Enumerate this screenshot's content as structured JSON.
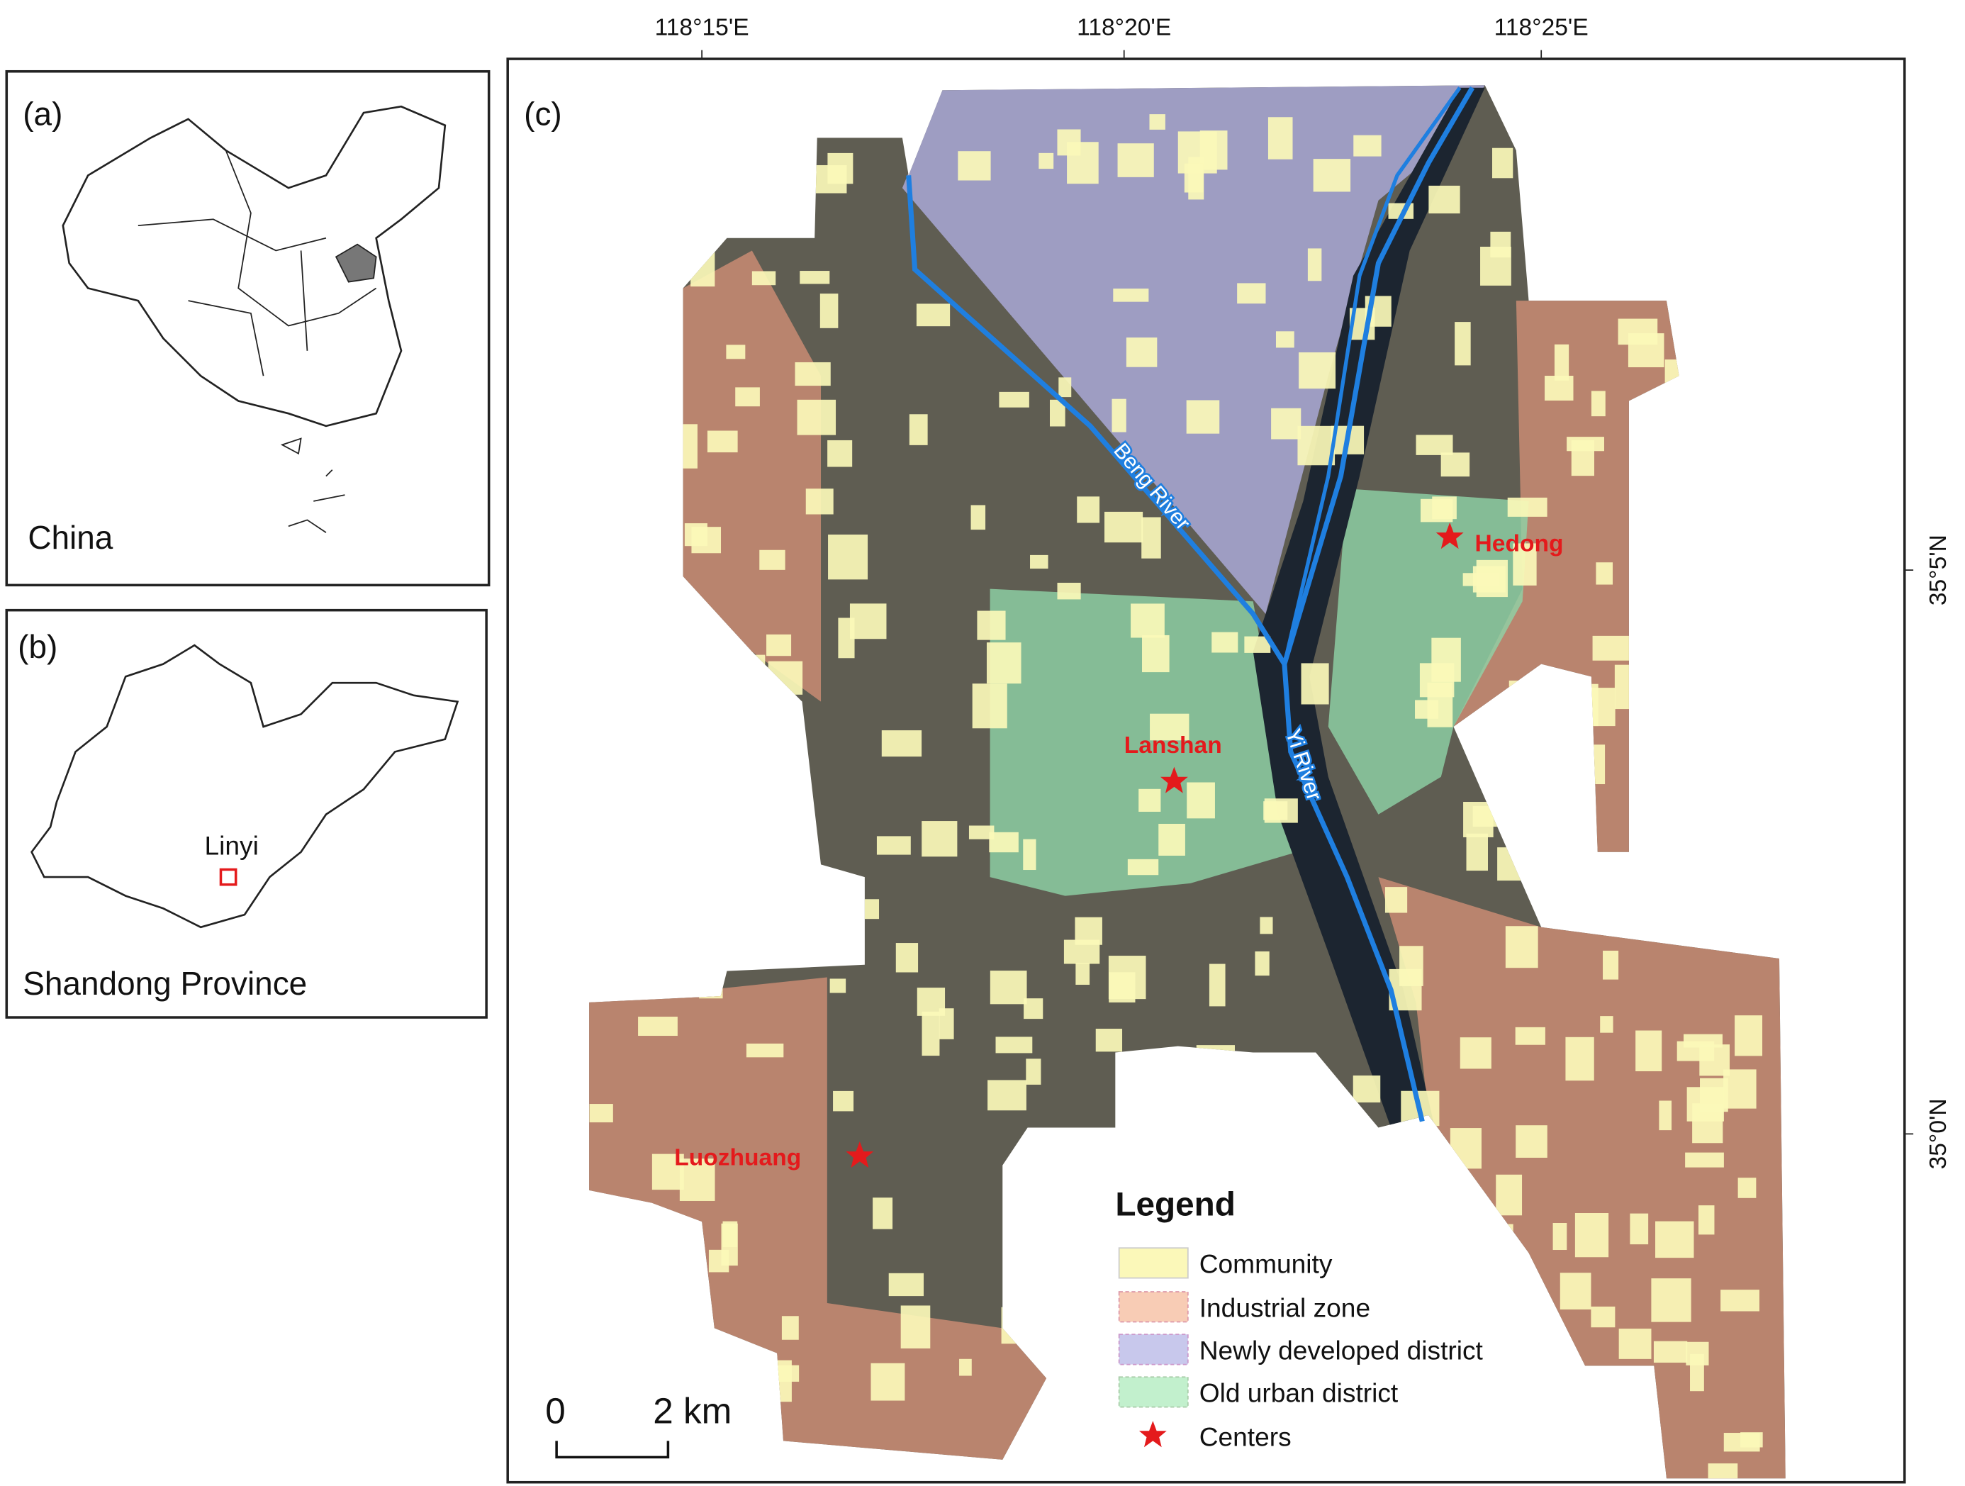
{
  "panel_a": {
    "label": "(a)",
    "name": "China"
  },
  "panel_b": {
    "label": "(b)",
    "city": "Linyi",
    "name": "Shandong Province"
  },
  "panel_c": {
    "label": "(c)",
    "x_ticks": [
      "118°15'E",
      "118°20'E",
      "118°25'E"
    ],
    "y_ticks": [
      "35°5'N",
      "35°0'N"
    ],
    "rivers": [
      "Beng River",
      "Yi River"
    ],
    "centers": [
      "Hedong",
      "Lanshan",
      "Luozhuang"
    ],
    "legend": {
      "title": "Legend",
      "items": [
        "Community",
        "Industrial zone",
        "Newly developed district",
        "Old urban district",
        "Centers"
      ]
    },
    "scale_bar": {
      "start": "0",
      "end": "2 km"
    }
  }
}
